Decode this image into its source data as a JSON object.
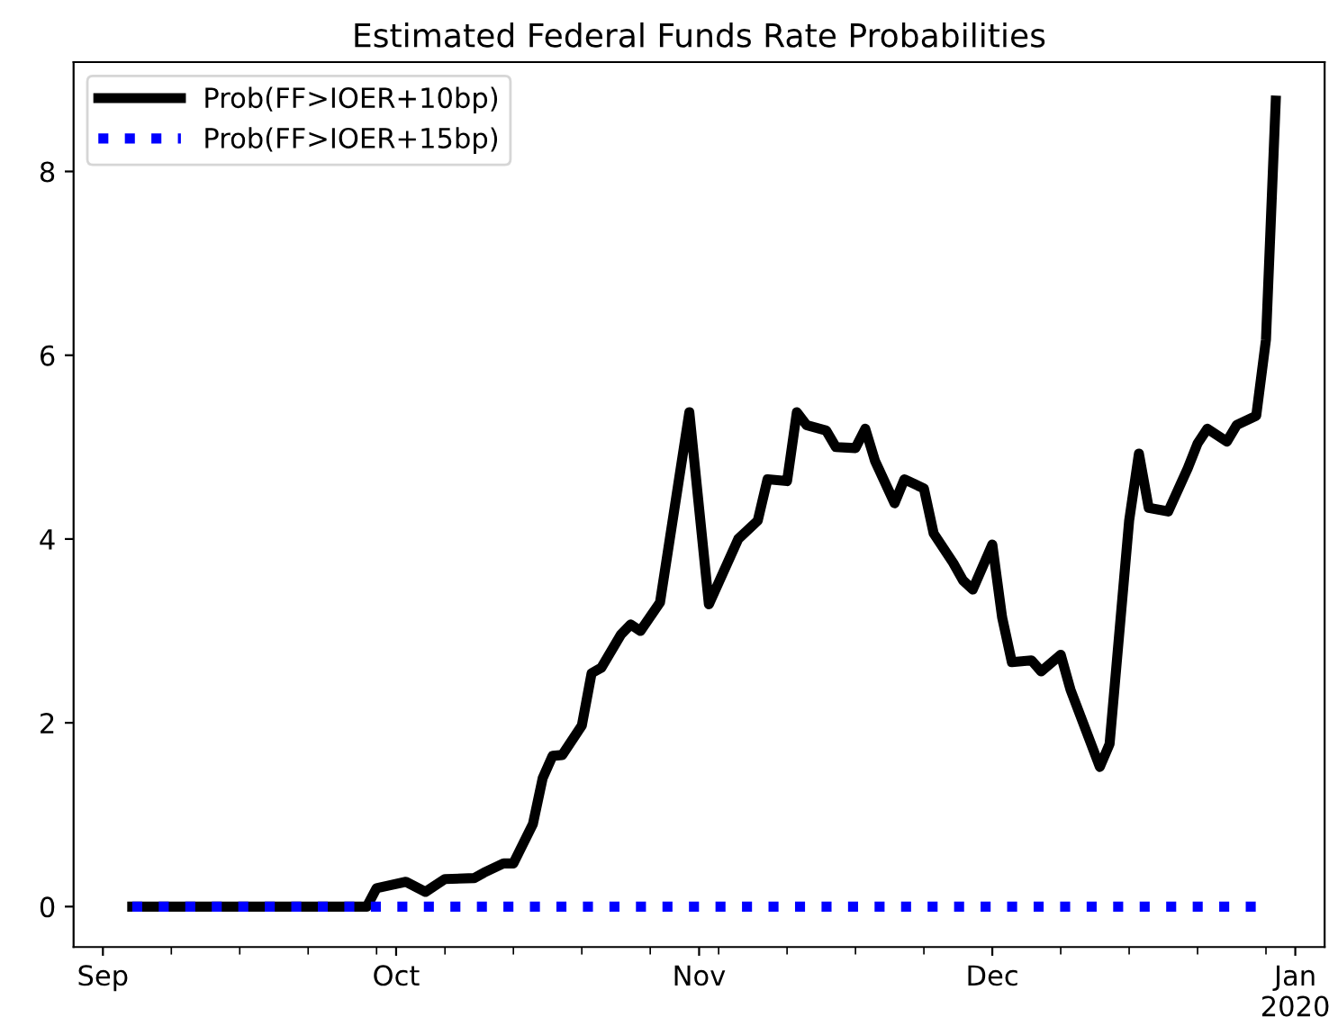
{
  "chart_data": {
    "type": "line",
    "title": "Estimated Federal Funds Rate Probabilities",
    "legend": "top left",
    "grid": false,
    "marker": "none",
    "xlim": [
      "2019-08-29",
      "2020-01-04"
    ],
    "ylim": [
      -0.44,
      9.19
    ],
    "yticks": [
      0,
      2,
      4,
      6,
      8
    ],
    "xticks": [
      {
        "value": "2019-09-01",
        "label": "Sep"
      },
      {
        "value": "2019-10-01",
        "label": "Oct"
      },
      {
        "value": "2019-11-01",
        "label": "Nov"
      },
      {
        "value": "2019-12-01",
        "label": "Dec"
      },
      {
        "value": "2020-01-01",
        "label": "Jan\n2020"
      },
      {
        "value": "2019-09-08",
        "label": null
      },
      {
        "value": "2019-09-15",
        "label": null
      },
      {
        "value": "2019-09-22",
        "label": null
      },
      {
        "value": "2019-09-29",
        "label": null
      },
      {
        "value": "2019-10-06",
        "label": null
      },
      {
        "value": "2019-10-13",
        "label": null
      },
      {
        "value": "2019-10-20",
        "label": null
      },
      {
        "value": "2019-10-27",
        "label": null
      },
      {
        "value": "2019-11-03",
        "label": null
      },
      {
        "value": "2019-11-10",
        "label": null
      },
      {
        "value": "2019-11-17",
        "label": null
      },
      {
        "value": "2019-11-24",
        "label": null
      },
      {
        "value": "2019-12-08",
        "label": null
      },
      {
        "value": "2019-12-15",
        "label": null
      },
      {
        "value": "2019-12-22",
        "label": null
      },
      {
        "value": "2019-12-29",
        "label": null
      }
    ],
    "series": [
      {
        "name": "Prob(FF>IOER+10bp)",
        "color": "#000000",
        "line_style": "solid",
        "x": [
          "2019-09-04",
          "2019-09-28",
          "2019-09-29",
          "2019-10-02",
          "2019-10-04",
          "2019-10-06",
          "2019-10-09",
          "2019-10-10",
          "2019-10-12",
          "2019-10-13",
          "2019-10-15",
          "2019-10-16",
          "2019-10-17",
          "2019-10-18",
          "2019-10-20",
          "2019-10-21",
          "2019-10-22",
          "2019-10-24",
          "2019-10-25",
          "2019-10-26",
          "2019-10-28",
          "2019-10-29",
          "2019-10-31",
          "2019-11-02",
          "2019-11-05",
          "2019-11-07",
          "2019-11-08",
          "2019-11-10",
          "2019-11-11",
          "2019-11-12",
          "2019-11-14",
          "2019-11-15",
          "2019-11-17",
          "2019-11-18",
          "2019-11-19",
          "2019-11-21",
          "2019-11-22",
          "2019-11-24",
          "2019-11-25",
          "2019-11-27",
          "2019-11-28",
          "2019-11-29",
          "2019-12-01",
          "2019-12-02",
          "2019-12-03",
          "2019-12-05",
          "2019-12-06",
          "2019-12-08",
          "2019-12-09",
          "2019-12-12",
          "2019-12-13",
          "2019-12-15",
          "2019-12-16",
          "2019-12-17",
          "2019-12-19",
          "2019-12-21",
          "2019-12-22",
          "2019-12-23",
          "2019-12-25",
          "2019-12-26",
          "2019-12-28",
          "2019-12-29",
          "2019-12-30"
        ],
        "values": [
          0,
          0,
          0.2,
          0.27,
          0.16,
          0.3,
          0.31,
          0.37,
          0.47,
          0.47,
          0.9,
          1.4,
          1.64,
          1.65,
          1.97,
          2.54,
          2.6,
          2.96,
          3.07,
          3.0,
          3.31,
          4.0,
          5.38,
          3.29,
          4.0,
          4.2,
          4.65,
          4.63,
          5.38,
          5.24,
          5.18,
          5.0,
          4.99,
          5.2,
          4.85,
          4.39,
          4.65,
          4.55,
          4.06,
          3.74,
          3.55,
          3.45,
          3.94,
          3.15,
          2.66,
          2.68,
          2.56,
          2.74,
          2.36,
          1.52,
          1.77,
          4.2,
          4.93,
          4.34,
          4.3,
          4.77,
          5.04,
          5.2,
          5.06,
          5.24,
          5.34,
          6.17,
          8.77
        ]
      },
      {
        "name": "Prob(FF>IOER+15bp)",
        "color": "#0000ff",
        "line_style": "dotted",
        "x": [
          "2019-09-04",
          "2019-12-28"
        ],
        "values": [
          0,
          0
        ]
      }
    ]
  }
}
